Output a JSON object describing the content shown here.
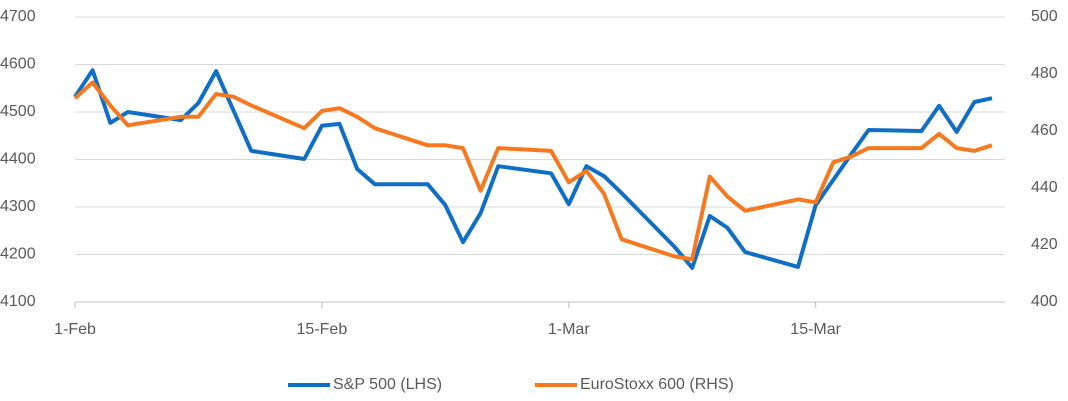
{
  "chart_data": {
    "type": "line",
    "x": [
      "1-Feb",
      "2-Feb",
      "3-Feb",
      "4-Feb",
      "7-Feb",
      "8-Feb",
      "9-Feb",
      "10-Feb",
      "11-Feb",
      "14-Feb",
      "15-Feb",
      "16-Feb",
      "17-Feb",
      "18-Feb",
      "21-Feb",
      "22-Feb",
      "23-Feb",
      "24-Feb",
      "25-Feb",
      "28-Feb",
      "1-Mar",
      "2-Mar",
      "3-Mar",
      "4-Mar",
      "7-Mar",
      "8-Mar",
      "9-Mar",
      "10-Mar",
      "11-Mar",
      "14-Mar",
      "15-Mar",
      "16-Mar",
      "17-Mar",
      "18-Mar",
      "21-Mar",
      "22-Mar",
      "23-Mar",
      "24-Mar",
      "25-Mar"
    ],
    "series": [
      {
        "name": "S&P 500 (LHS)",
        "color": "#0f6fc6",
        "axis": "y",
        "values": [
          4532,
          4588,
          4477,
          4500,
          4483,
          4519,
          4586,
          4502,
          4418,
          4401,
          4471,
          4475,
          4380,
          4348,
          4348,
          4304,
          4226,
          4287,
          4386,
          4371,
          4306,
          4386,
          4365,
          4329,
          4216,
          4172,
          4281,
          4256,
          4205,
          4174,
          4304,
          4357,
          4410,
          4462,
          4460,
          4513,
          4458,
          4521,
          4529
        ]
      },
      {
        "name": "EuroStoxx 600 (RHS)",
        "color": "#f7791f",
        "axis": "y2",
        "values": [
          471.5,
          477,
          469,
          462,
          465,
          465,
          473,
          472,
          469,
          461,
          467,
          468,
          465,
          461,
          455,
          455,
          454,
          439,
          454,
          453,
          442,
          446,
          438,
          422,
          416,
          415,
          444,
          437,
          432,
          436,
          435,
          449,
          451,
          454,
          454,
          459,
          454,
          453,
          455
        ]
      }
    ],
    "xlim": [
      "1-Feb",
      "25-Mar"
    ],
    "xticks": [
      "1-Feb",
      "15-Feb",
      "1-Mar",
      "15-Mar"
    ],
    "ylim": [
      4100,
      4700
    ],
    "yticks": [
      4100,
      4200,
      4300,
      4400,
      4500,
      4600,
      4700
    ],
    "y2lim": [
      400,
      500
    ],
    "y2ticks": [
      400,
      420,
      440,
      460,
      480,
      500
    ],
    "grid": true,
    "legend": "bottom"
  }
}
